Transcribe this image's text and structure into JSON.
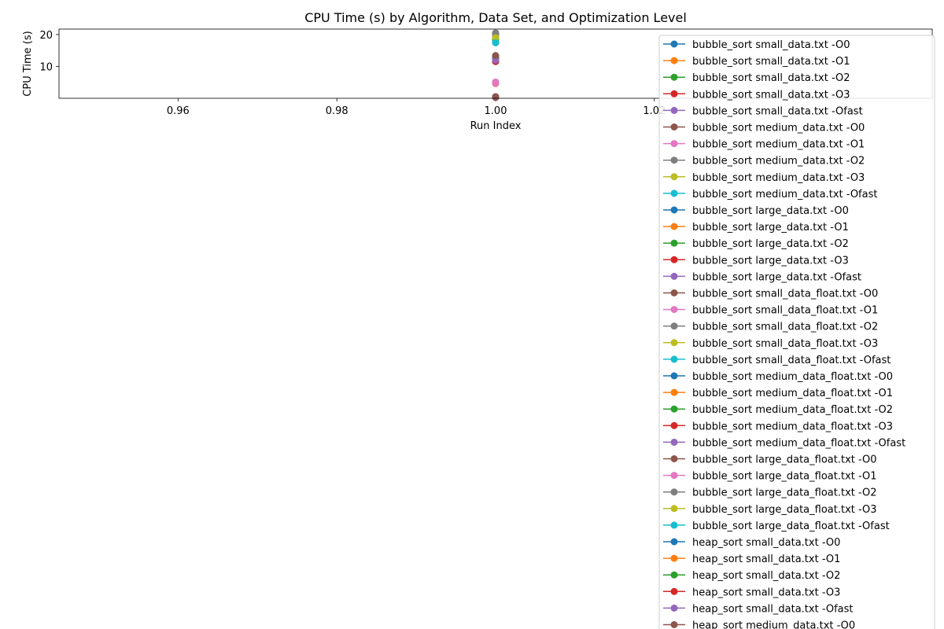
{
  "chart_data": {
    "type": "line",
    "title": "CPU Time (s) by Algorithm, Data Set, and Optimization Level",
    "xlabel": "Run Index",
    "ylabel": "CPU Time (s)",
    "xlim": [
      0.945,
      1.055
    ],
    "ylim": [
      0,
      21.7
    ],
    "x_ticks": [
      0.96,
      0.98,
      1.0,
      1.02
    ],
    "x_tick_labels": [
      "0.96",
      "0.98",
      "1.00",
      "1.02"
    ],
    "y_ticks": [
      10,
      20
    ],
    "y_tick_labels": [
      "10",
      "20"
    ],
    "grid": false,
    "legend_position": "right",
    "series": [
      {
        "name": "bubble_sort small_data.txt -O0",
        "color": "#1f77b4",
        "x": [
          1.0
        ],
        "values": [
          0.45
        ]
      },
      {
        "name": "bubble_sort small_data.txt -O1",
        "color": "#ff7f0e",
        "x": [
          1.0
        ],
        "values": [
          0.4
        ]
      },
      {
        "name": "bubble_sort small_data.txt -O2",
        "color": "#2ca02c",
        "x": [
          1.0
        ],
        "values": [
          0.42
        ]
      },
      {
        "name": "bubble_sort small_data.txt -O3",
        "color": "#d62728",
        "x": [
          1.0
        ],
        "values": [
          0.41
        ]
      },
      {
        "name": "bubble_sort small_data.txt -Ofast",
        "color": "#9467bd",
        "x": [
          1.0
        ],
        "values": [
          0.43
        ]
      },
      {
        "name": "bubble_sort medium_data.txt -O0",
        "color": "#8c564b",
        "x": [
          1.0
        ],
        "values": [
          13.0
        ]
      },
      {
        "name": "bubble_sort medium_data.txt -O1",
        "color": "#e377c2",
        "x": [
          1.0
        ],
        "values": [
          4.6
        ]
      },
      {
        "name": "bubble_sort medium_data.txt -O2",
        "color": "#7f7f7f",
        "x": [
          1.0
        ],
        "values": [
          20.3
        ]
      },
      {
        "name": "bubble_sort medium_data.txt -O3",
        "color": "#bcbd22",
        "x": [
          1.0
        ],
        "values": [
          18.9
        ]
      },
      {
        "name": "bubble_sort medium_data.txt -Ofast",
        "color": "#17becf",
        "x": [
          1.0
        ],
        "values": [
          17.6
        ]
      },
      {
        "name": "bubble_sort large_data.txt -O0",
        "color": "#1f77b4",
        "x": [
          1.0
        ],
        "values": [
          12.6
        ]
      },
      {
        "name": "bubble_sort large_data.txt -O1",
        "color": "#ff7f0e",
        "x": [
          1.0
        ],
        "values": [
          4.9
        ]
      },
      {
        "name": "bubble_sort large_data.txt -O2",
        "color": "#2ca02c",
        "x": [
          1.0
        ],
        "values": [
          18.5
        ]
      },
      {
        "name": "bubble_sort large_data.txt -O3",
        "color": "#d62728",
        "x": [
          1.0
        ],
        "values": [
          11.8
        ]
      },
      {
        "name": "bubble_sort large_data.txt -Ofast",
        "color": "#9467bd",
        "x": [
          1.0
        ],
        "values": [
          12.2
        ]
      },
      {
        "name": "bubble_sort small_data_float.txt -O0",
        "color": "#8c564b",
        "x": [
          1.0
        ],
        "values": [
          11.5
        ]
      },
      {
        "name": "bubble_sort small_data_float.txt -O1",
        "color": "#e377c2",
        "x": [
          1.0
        ],
        "values": [
          5.1
        ]
      },
      {
        "name": "bubble_sort small_data_float.txt -O2",
        "color": "#7f7f7f",
        "x": [
          1.0
        ],
        "values": [
          20.5
        ]
      },
      {
        "name": "bubble_sort small_data_float.txt -O3",
        "color": "#bcbd22",
        "x": [
          1.0
        ],
        "values": [
          19.2
        ]
      },
      {
        "name": "bubble_sort small_data_float.txt -Ofast",
        "color": "#17becf",
        "x": [
          1.0
        ],
        "values": [
          17.9
        ]
      },
      {
        "name": "bubble_sort medium_data_float.txt -O0",
        "color": "#1f77b4",
        "x": [
          1.0
        ],
        "values": [
          12.3
        ]
      },
      {
        "name": "bubble_sort medium_data_float.txt -O1",
        "color": "#ff7f0e",
        "x": [
          1.0
        ],
        "values": [
          4.7
        ]
      },
      {
        "name": "bubble_sort medium_data_float.txt -O2",
        "color": "#2ca02c",
        "x": [
          1.0
        ],
        "values": [
          18.7
        ]
      },
      {
        "name": "bubble_sort medium_data_float.txt -O3",
        "color": "#d62728",
        "x": [
          1.0
        ],
        "values": [
          11.6
        ]
      },
      {
        "name": "bubble_sort medium_data_float.txt -Ofast",
        "color": "#9467bd",
        "x": [
          1.0
        ],
        "values": [
          12.0
        ]
      },
      {
        "name": "bubble_sort large_data_float.txt -O0",
        "color": "#8c564b",
        "x": [
          1.0
        ],
        "values": [
          13.4
        ]
      },
      {
        "name": "bubble_sort large_data_float.txt -O1",
        "color": "#e377c2",
        "x": [
          1.0
        ],
        "values": [
          4.8
        ]
      },
      {
        "name": "bubble_sort large_data_float.txt -O2",
        "color": "#7f7f7f",
        "x": [
          1.0
        ],
        "values": [
          19.8
        ]
      },
      {
        "name": "bubble_sort large_data_float.txt -O3",
        "color": "#bcbd22",
        "x": [
          1.0
        ],
        "values": [
          19.0
        ]
      },
      {
        "name": "bubble_sort large_data_float.txt -Ofast",
        "color": "#17becf",
        "x": [
          1.0
        ],
        "values": [
          17.4
        ]
      },
      {
        "name": "heap_sort small_data.txt -O0",
        "color": "#1f77b4",
        "x": [
          1.0
        ],
        "values": [
          0.3
        ]
      },
      {
        "name": "heap_sort small_data.txt -O1",
        "color": "#ff7f0e",
        "x": [
          1.0
        ],
        "values": [
          0.28
        ]
      },
      {
        "name": "heap_sort small_data.txt -O2",
        "color": "#2ca02c",
        "x": [
          1.0
        ],
        "values": [
          0.27
        ]
      },
      {
        "name": "heap_sort small_data.txt -O3",
        "color": "#d62728",
        "x": [
          1.0
        ],
        "values": [
          0.29
        ]
      },
      {
        "name": "heap_sort small_data.txt -Ofast",
        "color": "#9467bd",
        "x": [
          1.0
        ],
        "values": [
          0.31
        ]
      },
      {
        "name": "heap_sort medium_data.txt -O0",
        "color": "#8c564b",
        "x": [
          1.0
        ],
        "values": [
          0.5
        ]
      }
    ]
  }
}
